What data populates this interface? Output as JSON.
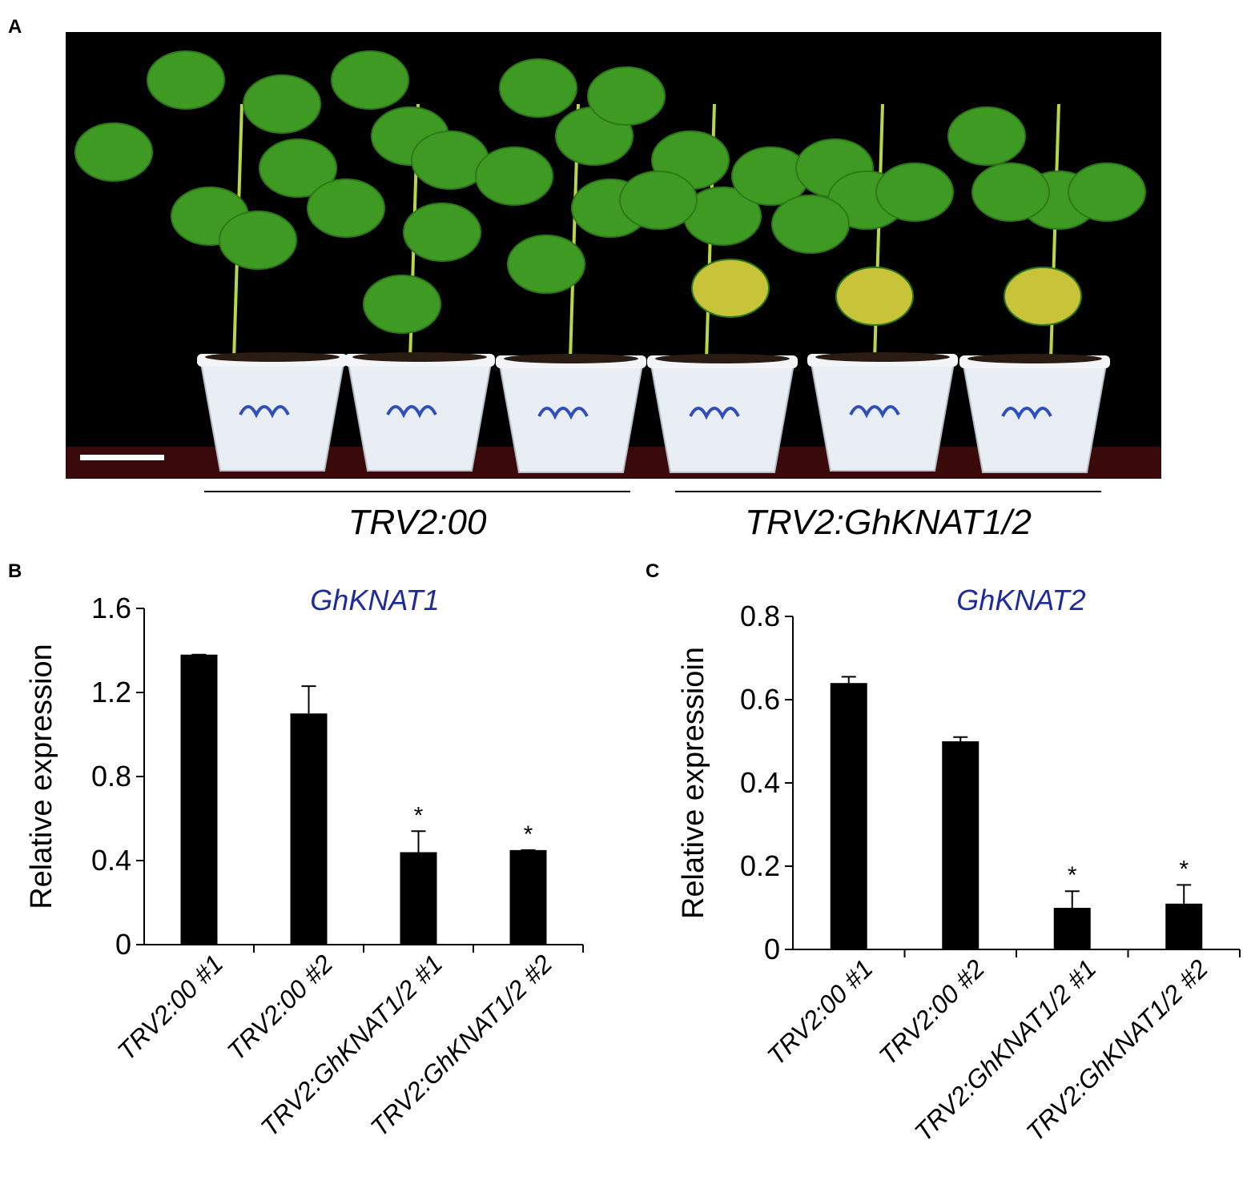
{
  "panel_a": {
    "letter": "A",
    "photo_description_icon": "potted-cotton-plants-photo",
    "groups": [
      {
        "label": "TRV2:00"
      },
      {
        "label": "TRV2:GhKNAT1/2"
      }
    ]
  },
  "panel_b": {
    "letter": "B"
  },
  "panel_c": {
    "letter": "C"
  },
  "chart_data": [
    {
      "type": "bar",
      "title": "GhKNAT1",
      "ylabel": "Relative expression",
      "xlabel": "",
      "ylim": [
        0,
        1.6
      ],
      "yticks": [
        "0",
        "0.4",
        "0.8",
        "1.2",
        "1.6"
      ],
      "ytick_values": [
        0,
        0.4,
        0.8,
        1.2,
        1.6
      ],
      "categories": [
        "TRV2:00 #1",
        "TRV2:00 #2",
        "TRV2:GhKNAT1/2 #1",
        "TRV2:GhKNAT1/2 #2"
      ],
      "values": [
        1.38,
        1.1,
        0.44,
        0.45
      ],
      "errors": [
        0.0,
        0.13,
        0.1,
        0.0
      ],
      "significance": [
        "",
        "",
        "*",
        "*"
      ],
      "bar_color": "#000000",
      "title_color": "#1f2a9c"
    },
    {
      "type": "bar",
      "title": "GhKNAT2",
      "ylabel": "Relative expressioin",
      "xlabel": "",
      "ylim": [
        0,
        0.8
      ],
      "yticks": [
        "0",
        "0.2",
        "0.4",
        "0.6",
        "0.8"
      ],
      "ytick_values": [
        0,
        0.2,
        0.4,
        0.6,
        0.8
      ],
      "categories": [
        "TRV2:00 #1",
        "TRV2:00 #2",
        "TRV2:GhKNAT1/2 #1",
        "TRV2:GhKNAT1/2 #2"
      ],
      "values": [
        0.64,
        0.5,
        0.1,
        0.11
      ],
      "errors": [
        0.015,
        0.01,
        0.04,
        0.045
      ],
      "significance": [
        "",
        "",
        "*",
        "*"
      ],
      "bar_color": "#000000",
      "title_color": "#1f2a9c"
    }
  ]
}
